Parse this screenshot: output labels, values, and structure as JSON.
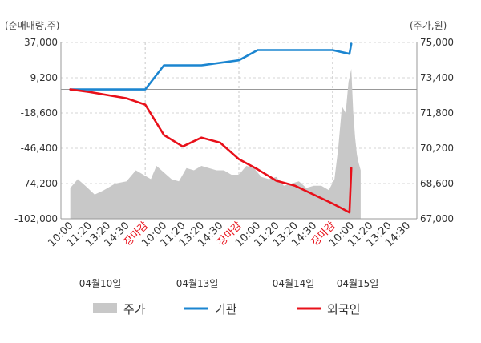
{
  "chart_data": {
    "type": "line",
    "left_axis_unit": "(순매매량,주)",
    "right_axis_unit": "(주가,원)",
    "left_ticks": [
      "37,000",
      "9,200",
      "-18,600",
      "-46,400",
      "-74,200",
      "-102,000"
    ],
    "right_ticks": [
      "75,000",
      "73,400",
      "71,800",
      "70,200",
      "68,600",
      "67,000"
    ],
    "ylim_left": [
      -102000,
      37000
    ],
    "ylim_right": [
      67000,
      75000
    ],
    "x_labels": [
      "10:00",
      "11:20",
      "13:20",
      "14:30",
      "장마감",
      "10:00",
      "11:20",
      "13:20",
      "14:30",
      "장마감",
      "10:00",
      "11:20",
      "13:20",
      "14:30",
      "장마감",
      "10:00",
      "11:20",
      "13:20",
      "14:30"
    ],
    "x_label_highlight": [
      false,
      false,
      false,
      false,
      true,
      false,
      false,
      false,
      false,
      true,
      false,
      false,
      false,
      false,
      true,
      false,
      false,
      false,
      false
    ],
    "dates": [
      "04월10일",
      "04월13일",
      "04월14일",
      "04월15일"
    ],
    "legend": [
      {
        "name": "주가",
        "color": "#c8c8c8",
        "kind": "area"
      },
      {
        "name": "기관",
        "color": "#1b85d0",
        "kind": "line"
      },
      {
        "name": "외국인",
        "color": "#e8101a",
        "kind": "line"
      }
    ],
    "series": [
      {
        "name": "기관",
        "x": [
          0,
          3,
          4,
          5,
          7,
          9,
          10,
          12,
          14,
          14.9,
          15
        ],
        "values": [
          0,
          0,
          0,
          19000,
          19000,
          23000,
          31000,
          31000,
          31000,
          28000,
          36000
        ]
      },
      {
        "name": "외국인",
        "x": [
          0,
          1,
          3,
          4,
          5,
          6,
          7,
          8,
          9,
          10,
          11,
          12,
          14,
          14.9,
          15
        ],
        "values": [
          0,
          -2000,
          -7000,
          -12000,
          -36000,
          -45000,
          -38000,
          -42000,
          -55000,
          -63000,
          -72000,
          -76000,
          -90000,
          -97000,
          -62000
        ]
      },
      {
        "name": "주가",
        "x": [
          0,
          0.4,
          0.8,
          1.3,
          1.8,
          2.4,
          3.0,
          3.5,
          3.9,
          4.3,
          4.6,
          5.0,
          5.4,
          5.8,
          6.2,
          6.6,
          7.0,
          7.4,
          7.8,
          8.2,
          8.6,
          9.0,
          9.4,
          9.8,
          10.2,
          10.6,
          11.0,
          11.4,
          11.8,
          12.2,
          12.6,
          13.0,
          13.4,
          13.8,
          14.1,
          14.3,
          14.5,
          14.7,
          14.85,
          15.0,
          15.1,
          15.2,
          15.3,
          15.4,
          15.5
        ],
        "values": [
          68400,
          68800,
          68500,
          68100,
          68300,
          68600,
          68700,
          69200,
          69000,
          68800,
          69400,
          69100,
          68800,
          68700,
          69300,
          69200,
          69400,
          69300,
          69200,
          69200,
          69000,
          69000,
          69400,
          69300,
          68900,
          68800,
          68900,
          68500,
          68600,
          68700,
          68400,
          68500,
          68500,
          68300,
          68800,
          70200,
          72100,
          71800,
          73200,
          73800,
          71900,
          70700,
          69900,
          69500,
          69200
        ]
      }
    ]
  }
}
